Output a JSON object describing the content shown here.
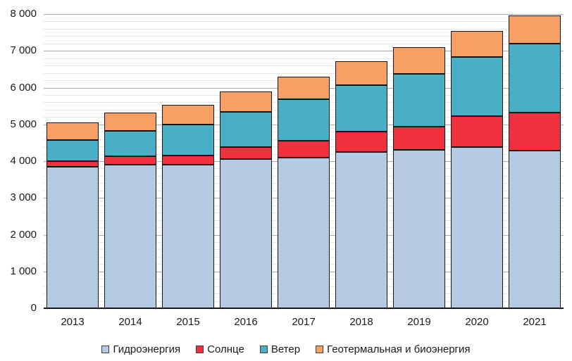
{
  "chart_data": {
    "type": "bar",
    "stacked": true,
    "title": "",
    "xlabel": "",
    "ylabel": "",
    "categories": [
      "2013",
      "2014",
      "2015",
      "2016",
      "2017",
      "2018",
      "2019",
      "2020",
      "2021"
    ],
    "series": [
      {
        "name": "Гидроэнергия",
        "color": "#b5cbe3",
        "values": [
          3840,
          3910,
          3910,
          4055,
          4100,
          4245,
          4300,
          4385,
          4285
        ]
      },
      {
        "name": "Солнце",
        "color": "#ee313c",
        "values": [
          160,
          215,
          240,
          320,
          450,
          565,
          640,
          840,
          1040
        ]
      },
      {
        "name": "Ветер",
        "color": "#49afc4",
        "values": [
          575,
          695,
          850,
          960,
          1140,
          1265,
          1435,
          1615,
          1875
        ]
      },
      {
        "name": "Геотермальная и биоэнергия",
        "color": "#f6a064",
        "values": [
          475,
          505,
          530,
          560,
          605,
          635,
          720,
          700,
          765
        ]
      }
    ],
    "totals": [
      5050,
      5325,
      5530,
      5895,
      6295,
      6710,
      7095,
      7540,
      7965
    ],
    "ylim": [
      0,
      8000
    ],
    "ytick_major": 1000,
    "ytick_minor": 200,
    "ytick_labels": [
      "0",
      "1 000",
      "2 000",
      "3 000",
      "4 000",
      "5 000",
      "6 000",
      "7 000",
      "8 000"
    ],
    "grid": true,
    "legend_position": "bottom",
    "colors": {
      "grid_minor": "#e7e7e7",
      "grid_major": "#a9a9a9",
      "axis_line": "#151515",
      "bar_border": "#151515",
      "text": "#1a1a1a",
      "background": "#ffffff"
    }
  }
}
